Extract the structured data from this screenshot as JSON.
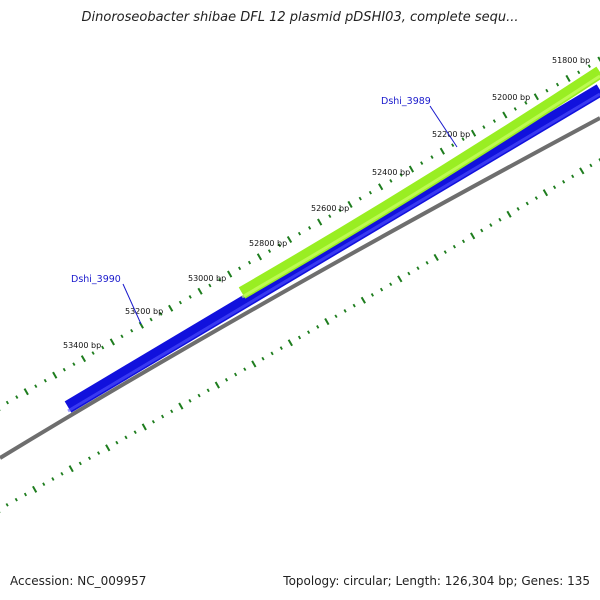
{
  "title": "Dinoroseobacter shibae DFL 12 plasmid pDSHI03, complete sequ...",
  "footer": {
    "accession": "Accession: NC_009957",
    "topology": "Topology: circular; Length: 126,304 bp; Genes: 135"
  },
  "colors": {
    "backbone": "#6e6e6e",
    "minus_strand_gene": "#1111dd",
    "plus_strand_gene": "#99ee22",
    "ticks": "#1e7d1e",
    "gene_label": "#1a1acc"
  },
  "position_labels": [
    "51800 bp",
    "52000 bp",
    "52200 bp",
    "52400 bp",
    "52600 bp",
    "52800 bp",
    "53000 bp",
    "53200 bp",
    "53400 bp"
  ],
  "genes": [
    {
      "name": "Dshi_3989",
      "strand": "plus"
    },
    {
      "name": "Dshi_3990",
      "strand": "minus"
    }
  ]
}
